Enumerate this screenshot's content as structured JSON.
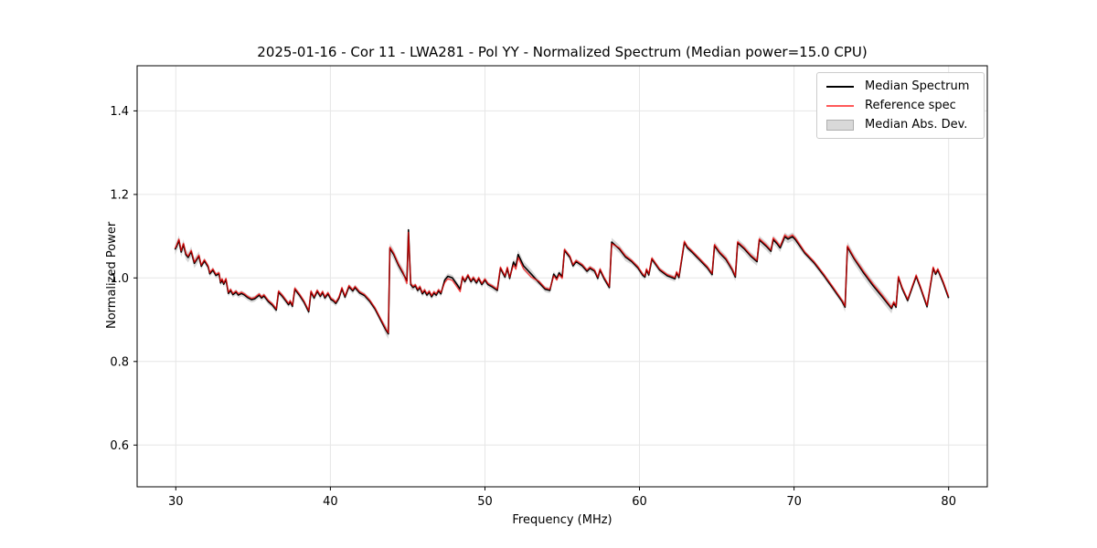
{
  "figure": {
    "title": "2025-01-16 - Cor 11 - LWA281 - Pol YY - Normalized Spectrum (Median power=15.0 CPU)",
    "xlabel": "Frequency (MHz)",
    "ylabel": "Normalized Power"
  },
  "legend": {
    "items": [
      {
        "label": "Median Spectrum",
        "swatch": "line-black",
        "color": "#000000"
      },
      {
        "label": "Reference spec",
        "swatch": "line-red",
        "color": "#ff5555"
      },
      {
        "label": "Median Abs. Dev.",
        "swatch": "patch-gray",
        "color": "#d9d9d9"
      }
    ]
  },
  "chart_data": {
    "type": "line",
    "title": "2025-01-16 - Cor 11 - LWA281 - Pol YY - Normalized Spectrum (Median power=15.0 CPU)",
    "xlabel": "Frequency (MHz)",
    "ylabel": "Normalized Power",
    "xlim": [
      27.5,
      82.5
    ],
    "ylim": [
      0.5,
      1.508
    ],
    "xticks": [
      30,
      40,
      50,
      60,
      70,
      80
    ],
    "yticks": [
      0.6,
      0.8,
      1.0,
      1.2,
      1.4
    ],
    "grid": true,
    "grid_color": "#e6e6e6",
    "legend_position": "upper right",
    "colors": {
      "median": "#000000",
      "reference": "rgba(255,0,0,0.7)",
      "mad_band": "#c9c9c9"
    },
    "x": [
      29.95,
      30.05,
      30.2,
      30.35,
      30.5,
      30.65,
      30.8,
      31.0,
      31.2,
      31.5,
      31.65,
      31.85,
      32.1,
      32.2,
      32.4,
      32.6,
      32.8,
      32.9,
      33.0,
      33.1,
      33.25,
      33.4,
      33.55,
      33.7,
      33.9,
      34.05,
      34.25,
      34.45,
      34.65,
      34.9,
      35.1,
      35.4,
      35.55,
      35.7,
      36.0,
      36.25,
      36.5,
      36.65,
      36.9,
      37.1,
      37.3,
      37.4,
      37.55,
      37.7,
      38.0,
      38.3,
      38.6,
      38.75,
      38.95,
      39.15,
      39.35,
      39.5,
      39.65,
      39.85,
      40.05,
      40.2,
      40.35,
      40.55,
      40.75,
      40.95,
      41.2,
      41.45,
      41.6,
      41.9,
      42.2,
      42.55,
      42.9,
      43.3,
      43.6,
      43.75,
      43.85,
      44.1,
      44.4,
      44.7,
      44.95,
      45.05,
      45.2,
      45.35,
      45.5,
      45.65,
      45.8,
      45.95,
      46.1,
      46.25,
      46.4,
      46.55,
      46.7,
      46.85,
      47.0,
      47.15,
      47.4,
      47.6,
      47.9,
      48.2,
      48.4,
      48.55,
      48.7,
      48.9,
      49.1,
      49.25,
      49.45,
      49.6,
      49.8,
      50.0,
      50.2,
      50.45,
      50.8,
      51.0,
      51.3,
      51.45,
      51.6,
      51.85,
      52.0,
      52.15,
      52.5,
      53.0,
      53.5,
      53.9,
      54.2,
      54.45,
      54.65,
      54.8,
      55.0,
      55.15,
      55.5,
      55.7,
      55.9,
      56.3,
      56.6,
      56.8,
      57.1,
      57.3,
      57.45,
      57.7,
      58.05,
      58.2,
      58.7,
      59.1,
      59.5,
      59.9,
      60.2,
      60.35,
      60.45,
      60.6,
      60.8,
      61.3,
      61.8,
      62.3,
      62.4,
      62.55,
      62.9,
      63.1,
      63.4,
      64.0,
      64.4,
      64.7,
      64.85,
      65.2,
      65.6,
      66.0,
      66.2,
      66.35,
      66.8,
      67.2,
      67.6,
      67.75,
      68.2,
      68.5,
      68.65,
      68.9,
      69.1,
      69.4,
      69.6,
      69.9,
      70.1,
      70.7,
      71.3,
      71.9,
      72.5,
      73.1,
      73.3,
      73.45,
      73.9,
      74.5,
      75.1,
      75.7,
      76.3,
      76.45,
      76.6,
      76.75,
      77.0,
      77.35,
      77.9,
      78.2,
      78.6,
      79.0,
      79.15,
      79.3,
      79.65,
      80.0
    ],
    "series": [
      {
        "name": "Median Spectrum",
        "values": [
          1.068,
          1.075,
          1.09,
          1.062,
          1.08,
          1.056,
          1.049,
          1.063,
          1.035,
          1.052,
          1.028,
          1.041,
          1.026,
          1.01,
          1.019,
          1.006,
          1.01,
          0.988,
          0.995,
          0.985,
          0.996,
          0.963,
          0.97,
          0.96,
          0.966,
          0.959,
          0.963,
          0.959,
          0.953,
          0.948,
          0.95,
          0.959,
          0.952,
          0.957,
          0.943,
          0.935,
          0.923,
          0.966,
          0.956,
          0.946,
          0.936,
          0.943,
          0.932,
          0.973,
          0.959,
          0.942,
          0.919,
          0.966,
          0.952,
          0.968,
          0.956,
          0.965,
          0.952,
          0.962,
          0.948,
          0.945,
          0.939,
          0.951,
          0.974,
          0.954,
          0.979,
          0.969,
          0.977,
          0.964,
          0.958,
          0.944,
          0.925,
          0.896,
          0.875,
          0.866,
          1.071,
          1.056,
          1.031,
          1.011,
          0.993,
          1.115,
          0.984,
          0.977,
          0.981,
          0.97,
          0.977,
          0.962,
          0.969,
          0.959,
          0.966,
          0.955,
          0.964,
          0.959,
          0.969,
          0.962,
          0.995,
          1.004,
          1.0,
          0.984,
          0.973,
          1.001,
          0.991,
          1.005,
          0.991,
          0.999,
          0.988,
          0.998,
          0.984,
          0.995,
          0.984,
          0.979,
          0.97,
          1.023,
          1.002,
          1.023,
          0.999,
          1.038,
          1.028,
          1.056,
          1.029,
          1.009,
          0.989,
          0.973,
          0.97,
          1.009,
          0.999,
          1.012,
          1.003,
          1.066,
          1.049,
          1.029,
          1.039,
          1.029,
          1.016,
          1.023,
          1.016,
          0.999,
          1.019,
          0.999,
          0.977,
          1.086,
          1.069,
          1.05,
          1.039,
          1.024,
          1.007,
          1.002,
          1.019,
          1.007,
          1.045,
          1.019,
          1.005,
          0.998,
          1.012,
          1.001,
          1.085,
          1.072,
          1.062,
          1.039,
          1.024,
          1.008,
          1.077,
          1.059,
          1.044,
          1.019,
          1.002,
          1.084,
          1.069,
          1.052,
          1.039,
          1.091,
          1.076,
          1.064,
          1.092,
          1.082,
          1.072,
          1.099,
          1.093,
          1.099,
          1.091,
          1.059,
          1.036,
          1.007,
          0.976,
          0.944,
          0.93,
          1.074,
          1.045,
          1.012,
          0.982,
          0.955,
          0.927,
          0.94,
          0.93,
          1.001,
          0.974,
          0.946,
          1.004,
          0.974,
          0.931,
          1.023,
          1.009,
          1.019,
          0.988,
          0.952
        ]
      },
      {
        "name": "Reference spec",
        "derived_from": "Median Spectrum",
        "offset_default": 0.003,
        "offset_regions": [
          {
            "from": 44.9,
            "to": 45.15,
            "offset": -0.006
          },
          {
            "from": 47.2,
            "to": 48.45,
            "offset": -0.006
          },
          {
            "from": 51.8,
            "to": 53.4,
            "offset": -0.007
          },
          {
            "from": 54.3,
            "to": 55.05,
            "offset": -0.004
          },
          {
            "from": 58.1,
            "to": 58.45,
            "offset": -0.004
          },
          {
            "from": 68.6,
            "to": 70.3,
            "offset": 0.004
          },
          {
            "from": 74.0,
            "to": 76.2,
            "offset": 0.004
          }
        ]
      },
      {
        "name": "Median Abs. Dev.",
        "band_around": "Median Spectrum",
        "half_width_default": 0.007,
        "half_width_regions": [
          {
            "from": 29.9,
            "to": 31.5,
            "half_width": 0.012
          },
          {
            "from": 43.6,
            "to": 45.3,
            "half_width": 0.012
          },
          {
            "from": 52.0,
            "to": 53.2,
            "half_width": 0.011
          },
          {
            "from": 58.2,
            "to": 59.2,
            "half_width": 0.01
          },
          {
            "from": 64.8,
            "to": 70.2,
            "half_width": 0.01
          },
          {
            "from": 73.3,
            "to": 76.4,
            "half_width": 0.012
          }
        ]
      }
    ]
  }
}
